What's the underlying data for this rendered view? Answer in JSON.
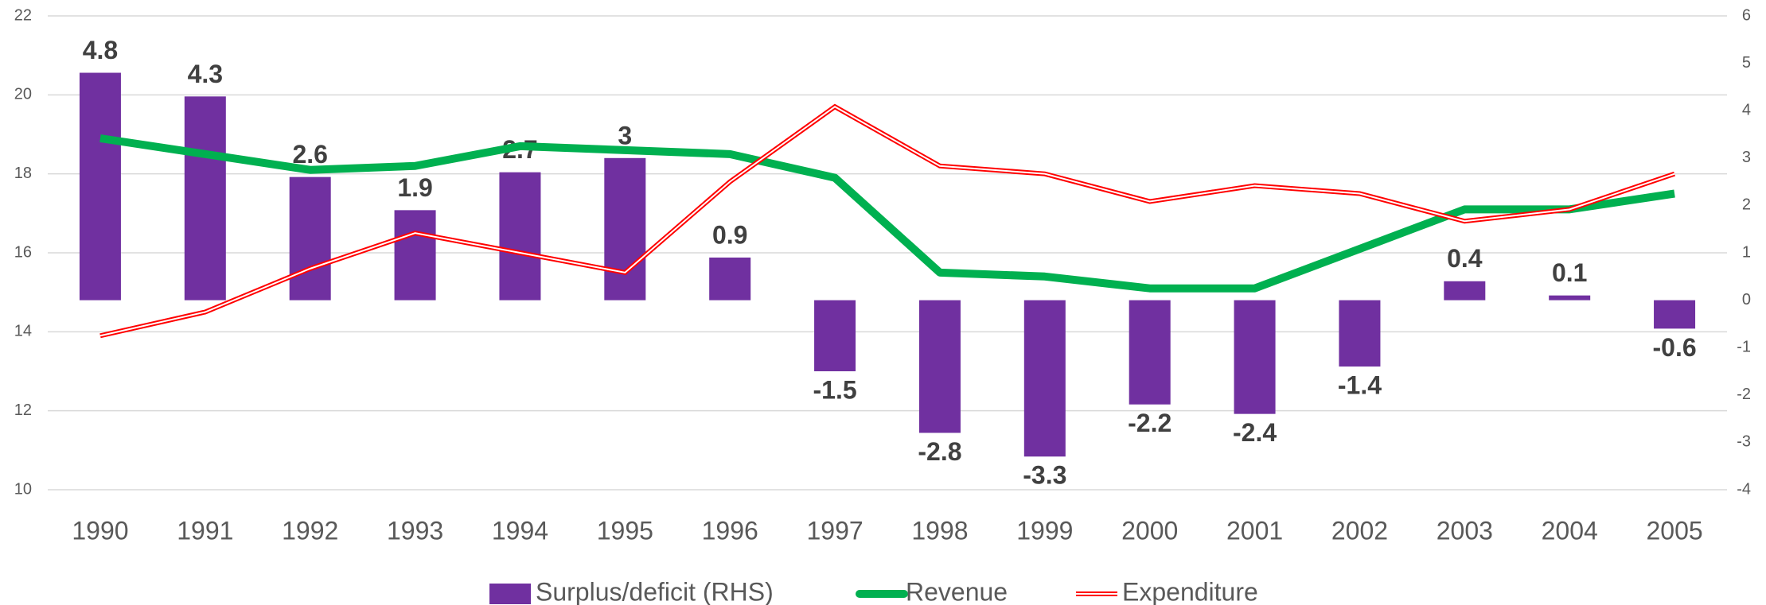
{
  "chart_data": {
    "type": "bar-line",
    "categories": [
      "1990",
      "1991",
      "1992",
      "1993",
      "1994",
      "1995",
      "1996",
      "1997",
      "1998",
      "1999",
      "2000",
      "2001",
      "2002",
      "2003",
      "2004",
      "2005"
    ],
    "series": [
      {
        "name": "Surplus/deficit (RHS)",
        "type": "bar",
        "axis": "y2",
        "color": "#7030a0",
        "values": [
          4.8,
          4.3,
          2.6,
          1.9,
          2.7,
          3,
          0.9,
          -1.5,
          -2.8,
          -3.3,
          -2.2,
          -2.4,
          -1.4,
          0.4,
          0.1,
          -0.6
        ]
      },
      {
        "name": "Revenue",
        "type": "line",
        "color": "#00b050",
        "values": [
          18.9,
          18.5,
          18.1,
          18.2,
          18.7,
          18.6,
          18.5,
          17.9,
          15.5,
          15.4,
          15.1,
          15.1,
          16.1,
          17.1,
          17.1,
          17.5
        ]
      },
      {
        "name": "Expenditure",
        "type": "double-line",
        "color": "#ff0000",
        "values": [
          13.9,
          14.5,
          15.6,
          16.5,
          16.0,
          15.5,
          17.8,
          19.7,
          18.2,
          18.0,
          17.3,
          17.7,
          17.5,
          16.8,
          17.1,
          18.0
        ]
      }
    ],
    "ylim": [
      10,
      22
    ],
    "yticks": [
      10,
      12,
      14,
      16,
      18,
      20,
      22
    ],
    "y2lim": [
      -4,
      6
    ],
    "y2ticks": [
      -4,
      -3,
      -2,
      -1,
      0,
      1,
      2,
      3,
      4,
      5,
      6
    ],
    "grid": true
  }
}
